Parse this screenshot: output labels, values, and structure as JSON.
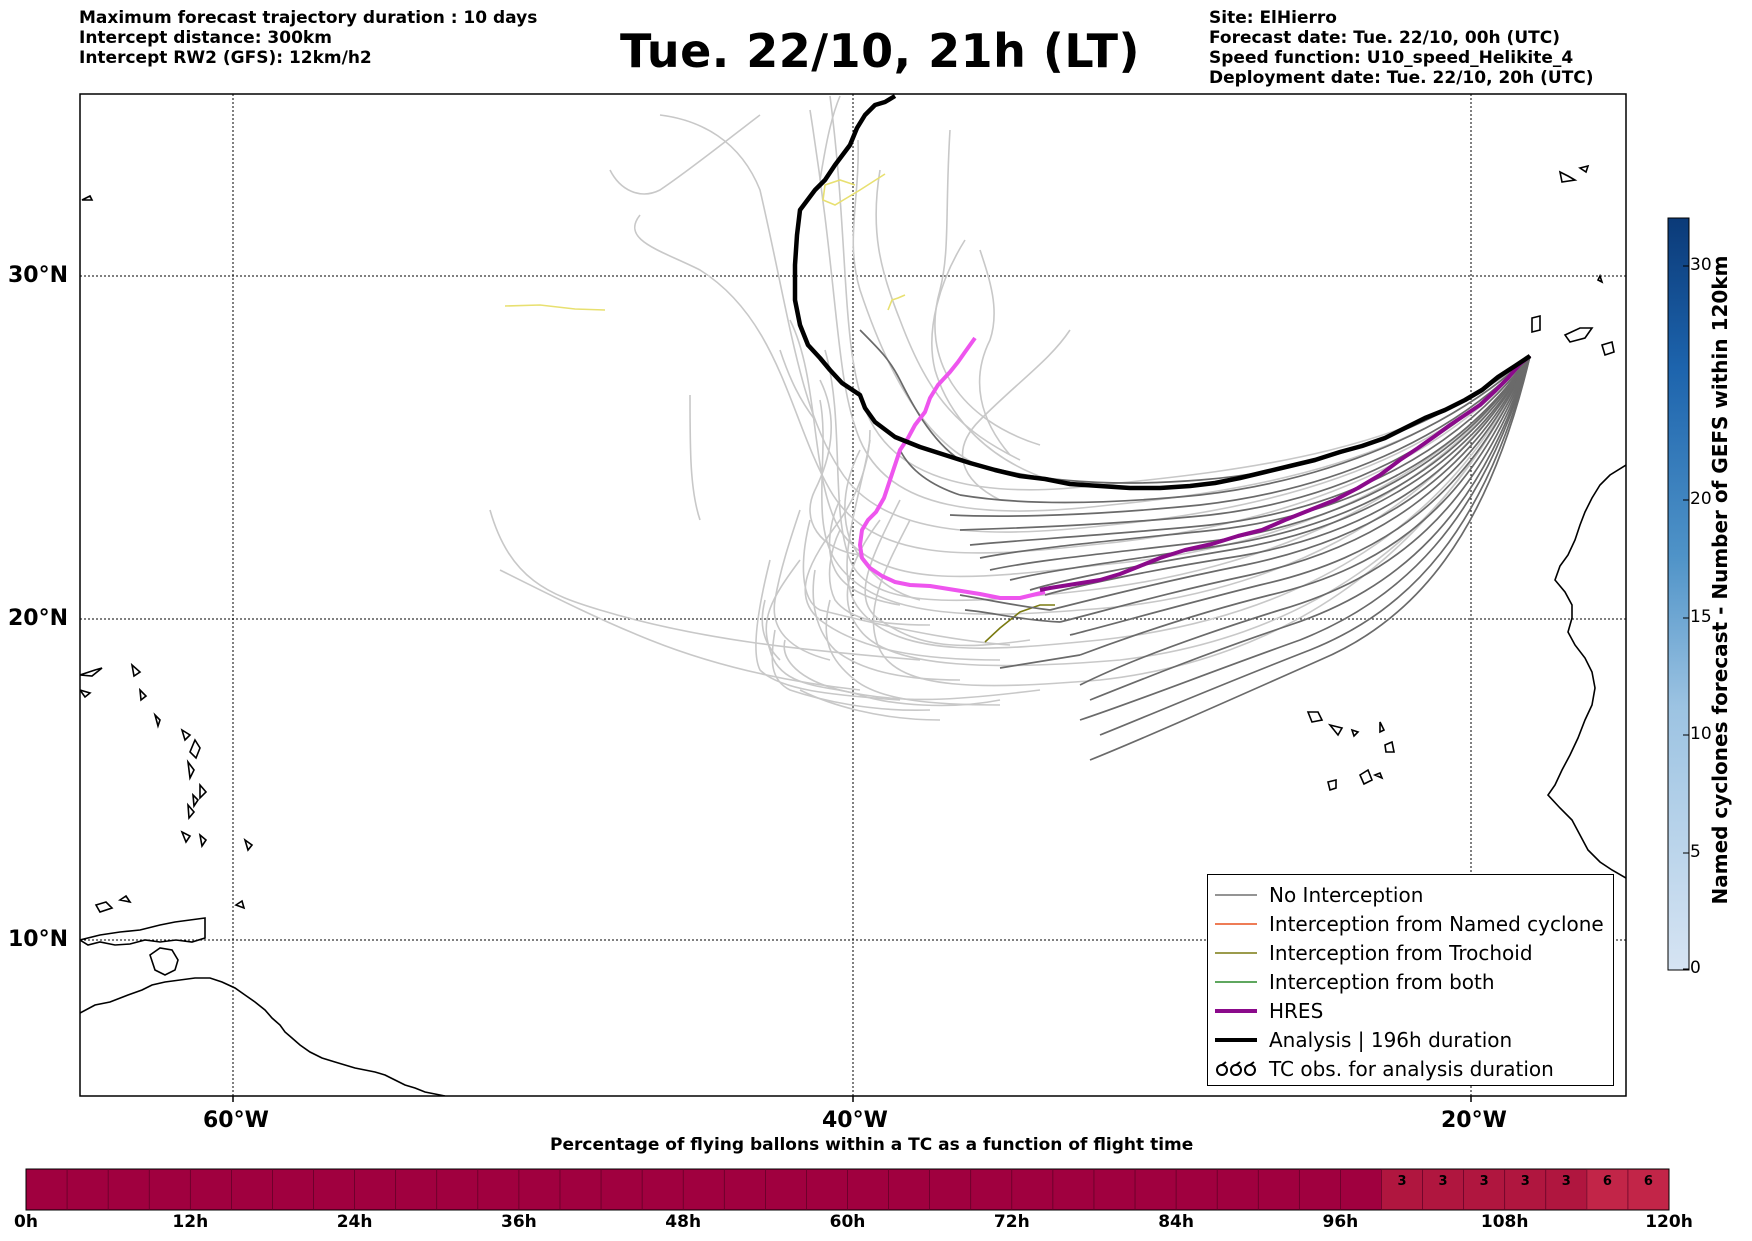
{
  "header": {
    "left": [
      "Maximum forecast trajectory duration : 10 days",
      "Intercept distance: 300km",
      "Intercept RW2 (GFS):  12km/h2"
    ],
    "title": "Tue. 22/10, 21h (LT)",
    "right": [
      "Site: ElHierro",
      "Forecast date: Tue. 22/10, 00h (UTC)",
      "Speed function: U10_speed_Helikite_4",
      "Deployment date: Tue. 22/10, 20h (UTC)"
    ]
  },
  "map": {
    "lat_labels": [
      "30°N",
      "20°N",
      "10°N"
    ],
    "lon_labels": [
      "60°W",
      "40°W",
      "20°W"
    ],
    "colors": {
      "no_interception": "#707070",
      "named_cyclone": "#e8501e",
      "trochoid": "#7a7a10",
      "both": "#2a8a2a",
      "hres": "#8b0a8b",
      "analysis": "#000000",
      "ensemble_faint": "#c8c8c8",
      "magenta_track": "#ee55ee",
      "yellow_track": "#e8e070"
    }
  },
  "legend": {
    "items": [
      {
        "label": "No Interception",
        "style": "thin",
        "color": "#707070"
      },
      {
        "label": "Interception from Named cyclone",
        "style": "thin",
        "color": "#e8501e"
      },
      {
        "label": "Interception from Trochoid",
        "style": "thin",
        "color": "#7a7a10"
      },
      {
        "label": "Interception from both",
        "style": "thin",
        "color": "#2a8a2a"
      },
      {
        "label": "HRES",
        "style": "thick",
        "color": "#8b0a8b"
      },
      {
        "label": "Analysis | 196h duration",
        "style": "thick",
        "color": "#000000"
      },
      {
        "label": "TC obs. for analysis duration",
        "style": "symbol",
        "color": "#000000"
      }
    ]
  },
  "colorbar": {
    "title": "Named cyclones forecast - Number of GEFS within 120km",
    "ticks": [
      "0",
      "5",
      "10",
      "15",
      "20",
      "30"
    ],
    "min": 0,
    "max": 32,
    "color_low": "#d6e4f3",
    "color_high": "#0b3a78"
  },
  "tc_bar": {
    "title": "Percentage of flying ballons within a TC as a function of flight time",
    "ticks": [
      "0h",
      "12h",
      "24h",
      "36h",
      "48h",
      "60h",
      "72h",
      "84h",
      "96h",
      "108h",
      "120h"
    ],
    "values": [
      "3",
      "3",
      "3",
      "3",
      "3",
      "6",
      "6"
    ],
    "color_base": "#a0003f",
    "color_mid": "#b0163f",
    "color_high": "#c22548"
  }
}
